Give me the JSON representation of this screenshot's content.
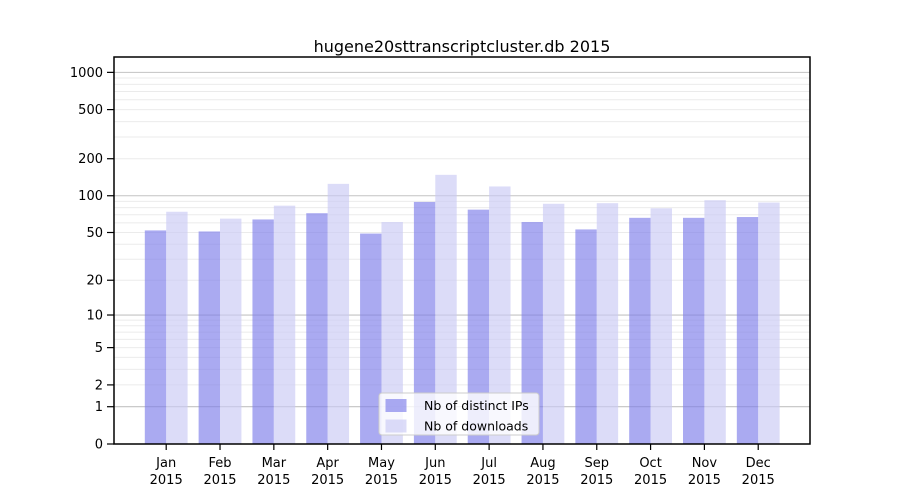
{
  "title": "hugene20sttranscriptcluster.db 2015",
  "chart_data": {
    "type": "bar",
    "title": "hugene20sttranscriptcluster.db 2015",
    "categories": [
      "Jan 2015",
      "Feb 2015",
      "Mar 2015",
      "Apr 2015",
      "May 2015",
      "Jun 2015",
      "Jul 2015",
      "Aug 2015",
      "Sep 2015",
      "Oct 2015",
      "Nov 2015",
      "Dec 2015"
    ],
    "x_tick_top": [
      "Jan",
      "Feb",
      "Mar",
      "Apr",
      "May",
      "Jun",
      "Jul",
      "Aug",
      "Sep",
      "Oct",
      "Nov",
      "Dec"
    ],
    "x_tick_bottom": "2015",
    "series": [
      {
        "name": "Nb of distinct IPs",
        "color": "rgba(124,124,233,0.65)",
        "legend_color": "#aaaaf0",
        "values": [
          52,
          51,
          64,
          72,
          49,
          89,
          77,
          61,
          53,
          66,
          66,
          67
        ]
      },
      {
        "name": "Nb of downloads",
        "color": "rgba(201,201,245,0.65)",
        "legend_color": "#dcdcf7",
        "values": [
          74,
          65,
          83,
          125,
          61,
          148,
          119,
          86,
          87,
          79,
          92,
          88
        ]
      }
    ],
    "y_axis": {
      "scale": "log10(value+1)",
      "ticks": [
        0,
        1,
        2,
        5,
        10,
        20,
        50,
        100,
        200,
        500,
        1000
      ],
      "ylim": [
        0,
        1331
      ],
      "major_gridlines": [
        1,
        10,
        100,
        1000
      ]
    },
    "legend": {
      "position": "lower-center",
      "entries": [
        "Nb of distinct IPs",
        "Nb of downloads"
      ]
    },
    "grid": true,
    "colors": {
      "frame": "#000000",
      "major_grid": "#c3c3c3",
      "minor_grid": "#ebebeb",
      "legend_border": "#cccccc",
      "background": "#ffffff"
    }
  }
}
